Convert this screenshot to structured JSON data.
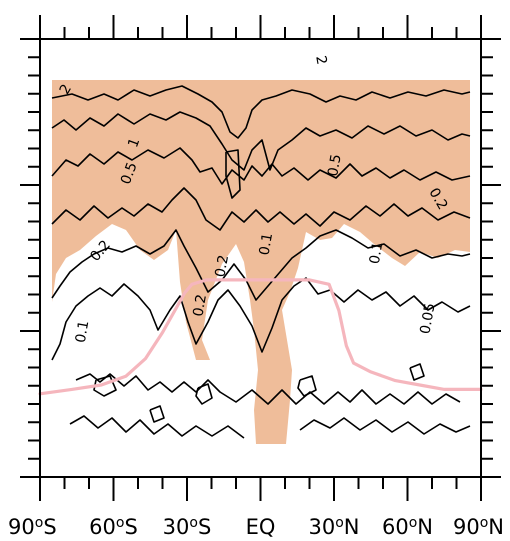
{
  "chart_data": {
    "type": "contour",
    "x_axis": {
      "ticks": [
        "90oS",
        "60oS",
        "30oS",
        "EQ",
        "30oN",
        "60oN",
        "90oN"
      ],
      "tick_values": [
        -90,
        -60,
        -30,
        0,
        30,
        60,
        90
      ],
      "range": [
        -90,
        90
      ]
    },
    "contour_labels": [
      {
        "text": "2",
        "lat": -78,
        "level": 0.88,
        "rotate": -60
      },
      {
        "text": "1",
        "lat": -50,
        "level": 0.76,
        "rotate": -70
      },
      {
        "text": "0.5",
        "lat": -52,
        "level": 0.69,
        "rotate": -70
      },
      {
        "text": "0.2",
        "lat": -64,
        "level": 0.51,
        "rotate": -50
      },
      {
        "text": "0.1",
        "lat": -71,
        "level": 0.33,
        "rotate": -80
      },
      {
        "text": "2",
        "lat": 23,
        "level": 0.95,
        "rotate": 80
      },
      {
        "text": "0.5",
        "lat": 32,
        "level": 0.71,
        "rotate": -80
      },
      {
        "text": "0.2",
        "lat": 71,
        "level": 0.63,
        "rotate": 60
      },
      {
        "text": "0.2",
        "lat": -14,
        "level": 0.48,
        "rotate": -80
      },
      {
        "text": "0.2",
        "lat": -23,
        "level": 0.39,
        "rotate": -80
      },
      {
        "text": "0.1",
        "lat": 4,
        "level": 0.53,
        "rotate": -80
      },
      {
        "text": "0.1",
        "lat": 49,
        "level": 0.51,
        "rotate": -80
      },
      {
        "text": "0.05",
        "lat": 70,
        "level": 0.36,
        "rotate": -80
      }
    ],
    "highlight_line": {
      "color": "#f5b6bd",
      "points": [
        [
          -90,
          0.19
        ],
        [
          -77,
          0.2
        ],
        [
          -65,
          0.21
        ],
        [
          -55,
          0.23
        ],
        [
          -47,
          0.27
        ],
        [
          -40,
          0.33
        ],
        [
          -35,
          0.38
        ],
        [
          -31,
          0.42
        ],
        [
          -28,
          0.44
        ],
        [
          -22,
          0.45
        ],
        [
          -10,
          0.45
        ],
        [
          0,
          0.45
        ],
        [
          10,
          0.45
        ],
        [
          20,
          0.45
        ],
        [
          28,
          0.44
        ],
        [
          32,
          0.38
        ],
        [
          35,
          0.3
        ],
        [
          38,
          0.26
        ],
        [
          45,
          0.24
        ],
        [
          55,
          0.22
        ],
        [
          65,
          0.21
        ],
        [
          75,
          0.2
        ],
        [
          90,
          0.2
        ]
      ]
    },
    "fill_color": "#efbd9a",
    "line_color": "#000000",
    "grid": false,
    "legend": "none"
  }
}
